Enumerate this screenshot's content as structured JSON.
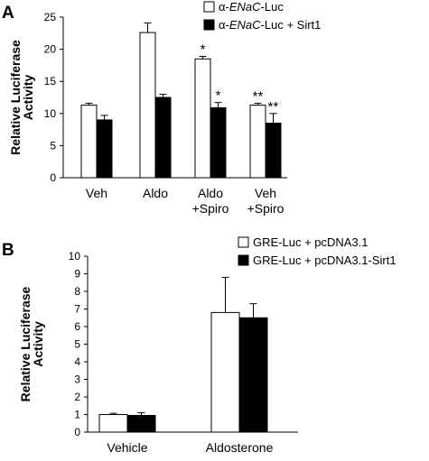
{
  "chart_data": [
    {
      "panel_label": "A",
      "type": "bar",
      "categories": [
        [
          "Veh"
        ],
        [
          "Aldo"
        ],
        [
          "Aldo",
          "+Spiro"
        ],
        [
          "Veh",
          "+Spiro"
        ]
      ],
      "ylabel": [
        "Relative Luciferase",
        "Activity"
      ],
      "ylim": [
        0,
        25
      ],
      "yticks": [
        0,
        5,
        10,
        15,
        20,
        25
      ],
      "grid": false,
      "legend_position": "top-right",
      "series": [
        {
          "name_prefix": "α-",
          "name_italic": "ENaC",
          "name_suffix": "-Luc",
          "color": "#ffffff",
          "values": [
            11.3,
            22.6,
            18.5,
            11.3
          ],
          "errors": [
            0.3,
            1.5,
            0.4,
            0.3
          ],
          "significance": [
            "",
            "",
            "*",
            "**"
          ]
        },
        {
          "name_prefix": "α-",
          "name_italic": "ENaC",
          "name_suffix": "-Luc + Sirt1",
          "color": "#000000",
          "values": [
            9.0,
            12.5,
            10.9,
            8.5
          ],
          "errors": [
            0.7,
            0.5,
            0.8,
            1.5
          ],
          "significance": [
            "",
            "",
            "*",
            "**"
          ]
        }
      ]
    },
    {
      "panel_label": "B",
      "type": "bar",
      "categories": [
        [
          "Vehicle"
        ],
        [
          "Aldosterone"
        ]
      ],
      "ylabel": [
        "Relative Luciferase",
        "Activity"
      ],
      "ylim": [
        0,
        10
      ],
      "yticks": [
        0,
        1,
        2,
        3,
        4,
        5,
        6,
        7,
        8,
        9,
        10
      ],
      "grid": false,
      "legend_position": "top-right",
      "series": [
        {
          "name_prefix": "GRE-Luc + pcDNA3.1",
          "name_italic": "",
          "name_suffix": "",
          "color": "#ffffff",
          "values": [
            1.0,
            6.8
          ],
          "errors": [
            0.07,
            2.0
          ],
          "significance": [
            "",
            ""
          ]
        },
        {
          "name_prefix": "GRE-Luc + pcDNA3.1-Sirt1",
          "name_italic": "",
          "name_suffix": "",
          "color": "#000000",
          "values": [
            0.95,
            6.5
          ],
          "errors": [
            0.15,
            0.8
          ],
          "significance": [
            "",
            ""
          ]
        }
      ]
    }
  ]
}
